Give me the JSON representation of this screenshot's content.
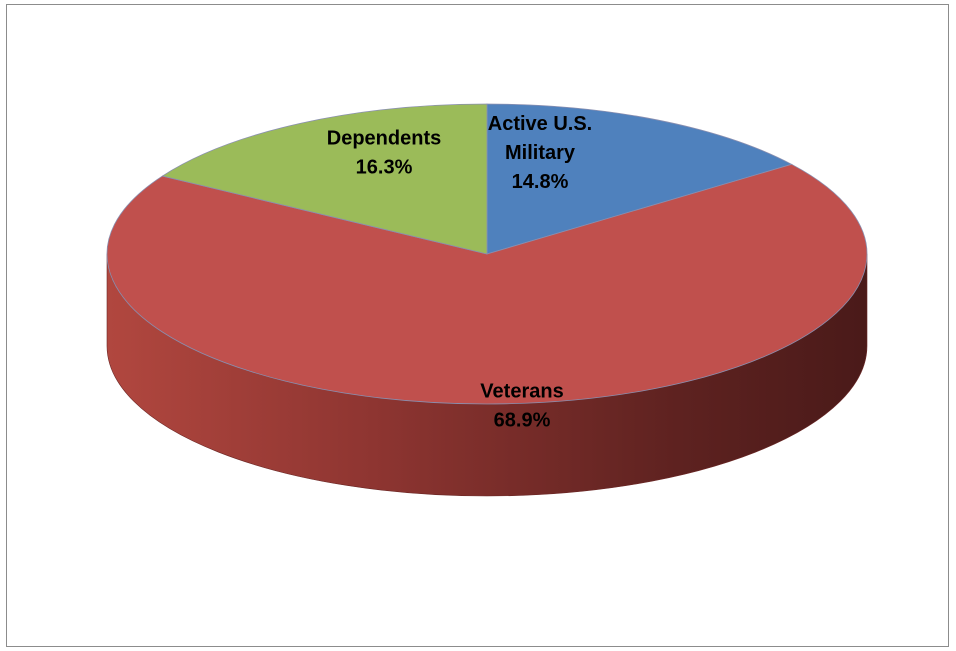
{
  "chart_data": {
    "type": "pie",
    "style": "3d",
    "title": "",
    "slices": [
      {
        "name_lines": [
          "Active U.S.",
          "Military"
        ],
        "value": 14.8,
        "value_label": "14.8%",
        "color": "#4f81bd",
        "side_color": "#2c4d75"
      },
      {
        "name_lines": [
          "Veterans"
        ],
        "value": 68.9,
        "value_label": "68.9%",
        "color": "#c0504d",
        "side_color": "#8a2c2a"
      },
      {
        "name_lines": [
          "Dependents"
        ],
        "value": 16.3,
        "value_label": "16.3%",
        "color": "#9bbb59",
        "side_color": "#6b8a2c"
      }
    ],
    "legend": "none",
    "data_labels": "inside"
  }
}
